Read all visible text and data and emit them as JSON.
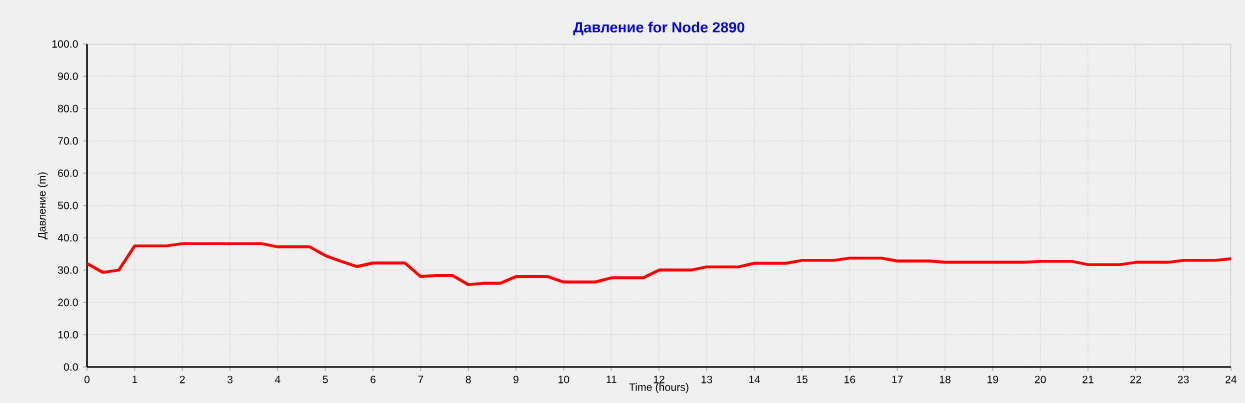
{
  "chart_data": {
    "type": "line",
    "title": "Давление for Node 2890",
    "xlabel": "Time (hours)",
    "ylabel": "Давление (m)",
    "x": [
      0,
      0.333,
      0.667,
      1,
      1.667,
      2,
      3.667,
      4,
      4.667,
      5,
      5.333,
      5.667,
      6,
      6.667,
      7,
      7.333,
      7.667,
      8,
      8.333,
      8.667,
      9,
      9.667,
      10,
      10.667,
      11,
      11.667,
      12,
      12.667,
      13,
      13.667,
      14,
      14.667,
      15,
      15.667,
      16,
      16.667,
      17,
      17.667,
      18,
      19.667,
      20,
      20.667,
      21,
      21.667,
      22,
      22.667,
      23,
      23.667,
      24
    ],
    "series": [
      {
        "color": "#ff0000",
        "values": [
          32.0,
          29.3,
          30.0,
          37.5,
          37.5,
          38.2,
          38.2,
          37.2,
          37.2,
          34.5,
          32.7,
          31.1,
          32.2,
          32.2,
          28.0,
          28.3,
          28.3,
          25.5,
          25.9,
          25.9,
          28.0,
          28.0,
          26.3,
          26.3,
          27.6,
          27.6,
          30.0,
          30.0,
          31.0,
          31.0,
          32.1,
          32.1,
          33.0,
          33.0,
          33.7,
          33.7,
          32.8,
          32.8,
          32.4,
          32.4,
          32.7,
          32.7,
          31.7,
          31.7,
          32.4,
          32.4,
          33.0,
          33.0,
          33.5
        ]
      }
    ],
    "xlim": [
      0,
      24
    ],
    "ylim": [
      0,
      100
    ],
    "xticks": [
      0,
      1,
      2,
      3,
      4,
      5,
      6,
      7,
      8,
      9,
      10,
      11,
      12,
      13,
      14,
      15,
      16,
      17,
      18,
      19,
      20,
      21,
      22,
      23,
      24
    ],
    "yticks": [
      {
        "value": 0,
        "label": "0.0"
      },
      {
        "value": 10,
        "label": "10.0"
      },
      {
        "value": 20,
        "label": "20.0"
      },
      {
        "value": 30,
        "label": "30.0"
      },
      {
        "value": 40,
        "label": "40.0"
      },
      {
        "value": 50,
        "label": "50.0"
      },
      {
        "value": 60,
        "label": "60.0"
      },
      {
        "value": 70,
        "label": "70.0"
      },
      {
        "value": 80,
        "label": "80.0"
      },
      {
        "value": 90,
        "label": "90.0"
      },
      {
        "value": 100,
        "label": "100.0"
      }
    ],
    "grid": true
  }
}
